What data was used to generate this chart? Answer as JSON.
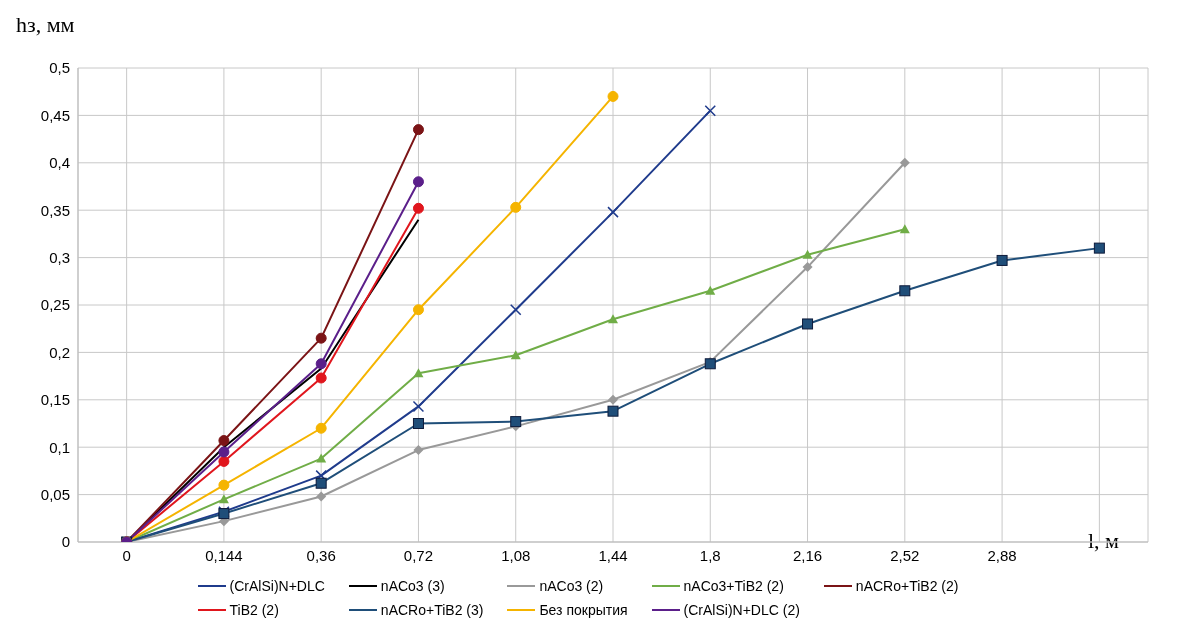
{
  "chart_data": {
    "type": "line",
    "ylabel": "hз, мм",
    "xlabel": "l, м",
    "categories": [
      "0",
      "0,144",
      "0,36",
      "0,72",
      "1,08",
      "1,44",
      "1,8",
      "2,16",
      "2,52",
      "2,88",
      null
    ],
    "ylim": [
      0,
      0.5
    ],
    "yticks": [
      0,
      {
        "value": 0.05,
        "label": "0,05"
      },
      {
        "value": 0.1,
        "label": "0,1"
      },
      {
        "value": 0.15,
        "label": "0,15"
      },
      {
        "value": 0.2,
        "label": "0,2"
      },
      {
        "value": 0.25,
        "label": "0,25"
      },
      {
        "value": 0.3,
        "label": "0,3"
      },
      {
        "value": 0.35,
        "label": "0,35"
      },
      {
        "value": 0.4,
        "label": "0,4"
      },
      {
        "value": 0.45,
        "label": "0,45"
      },
      {
        "value": 0.5,
        "label": "0,5"
      }
    ],
    "grid": true,
    "legend": "bottom",
    "series": [
      {
        "name": "(CrAlSi)N+DLC",
        "color": "#1f3b8c",
        "marker": "cross",
        "values": [
          0,
          0.032,
          0.07,
          0.143,
          0.245,
          0.348,
          0.455,
          null,
          null,
          null,
          null
        ]
      },
      {
        "name": "nACo3 (3)",
        "color": "#000000",
        "marker": "none",
        "values": [
          0,
          0.1,
          0.183,
          0.34,
          null,
          null,
          null,
          null,
          null,
          null,
          null
        ]
      },
      {
        "name": "nACo3 (2)",
        "color": "#999999",
        "marker": "diamond",
        "values": [
          0,
          0.022,
          0.048,
          0.097,
          0.122,
          0.15,
          0.19,
          0.29,
          0.4,
          null,
          null
        ]
      },
      {
        "name": "nACo3+TiB2 (2)",
        "color": "#70ad47",
        "marker": "triangle",
        "values": [
          0,
          0.045,
          0.088,
          0.178,
          0.197,
          0.235,
          0.265,
          0.303,
          0.33,
          null,
          null
        ]
      },
      {
        "name": "nACRo+TiB2 (2)",
        "color": "#7b1416",
        "marker": "circle",
        "values": [
          0,
          0.107,
          0.215,
          0.435,
          null,
          null,
          null,
          null,
          null,
          null,
          null
        ]
      },
      {
        "name": "TiB2 (2)",
        "color": "#e0161d",
        "marker": "circle",
        "values": [
          0,
          0.085,
          0.173,
          0.352,
          null,
          null,
          null,
          null,
          null,
          null,
          null
        ]
      },
      {
        "name": "nACRo+TiB2 (3)",
        "color": "#1f4e79",
        "marker": "square",
        "values": [
          0,
          0.03,
          0.062,
          0.125,
          0.127,
          0.138,
          0.188,
          0.23,
          0.265,
          0.297,
          0.31
        ]
      },
      {
        "name": "Без покрытия",
        "color": "#f5b400",
        "marker": "circle",
        "values": [
          0,
          0.06,
          0.12,
          0.245,
          0.353,
          0.47,
          null,
          null,
          null,
          null,
          null
        ]
      },
      {
        "name": "(CrAlSi)N+DLC (2)",
        "color": "#5b1f8a",
        "marker": "circle",
        "values": [
          0,
          0.095,
          0.188,
          0.38,
          null,
          null,
          null,
          null,
          null,
          null,
          null
        ]
      }
    ]
  }
}
